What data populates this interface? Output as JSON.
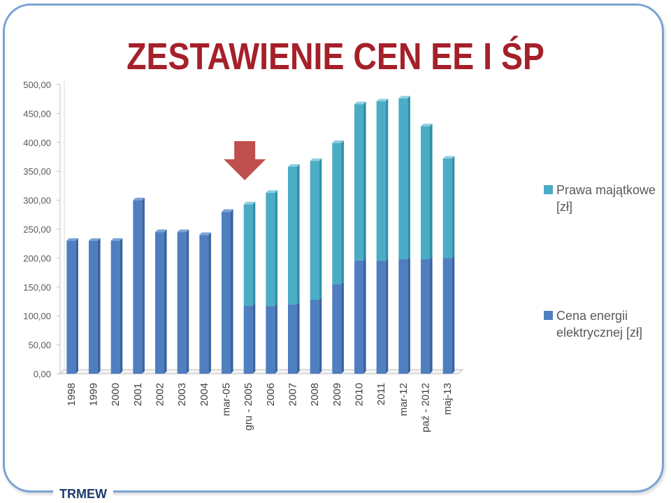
{
  "title": "ZESTAWIENIE CEN EE I ŚP",
  "footer": "TRMEW",
  "colors": {
    "energy": "#4f7fc0",
    "energy_side": "#3a64a0",
    "property": "#4bacc6",
    "property_side": "#2f8fa9",
    "arrow": "#c0504d",
    "title": "#a5202a"
  },
  "chart_data": {
    "type": "bar",
    "stacked": true,
    "categories": [
      "1998",
      "1999",
      "2000",
      "2001",
      "2002",
      "2003",
      "2004",
      "mar-05",
      "gru - 2005",
      "2006",
      "2007",
      "2008",
      "2009",
      "2010",
      "2011",
      "mar-12",
      "paź - 2012",
      "maj-13"
    ],
    "series": [
      {
        "name": "Cena energii elektrycznej [zł]",
        "values": [
          230,
          230,
          230,
          300,
          245,
          245,
          240,
          280,
          118,
          117,
          120,
          128,
          155,
          196,
          195,
          198,
          198,
          200
        ]
      },
      {
        "name": "Prawa majątkowe [zł]",
        "values": [
          0,
          0,
          0,
          0,
          0,
          0,
          0,
          0,
          175,
          196,
          238,
          240,
          244,
          270,
          276,
          278,
          230,
          172
        ]
      }
    ],
    "y_ticks": [
      "0,00",
      "50,00",
      "100,00",
      "150,00",
      "200,00",
      "250,00",
      "300,00",
      "350,00",
      "400,00",
      "450,00",
      "500,00"
    ],
    "ylim": [
      0,
      500
    ],
    "legend_position": "right",
    "annotation": {
      "type": "arrow-down",
      "category": "gru - 2005"
    }
  }
}
